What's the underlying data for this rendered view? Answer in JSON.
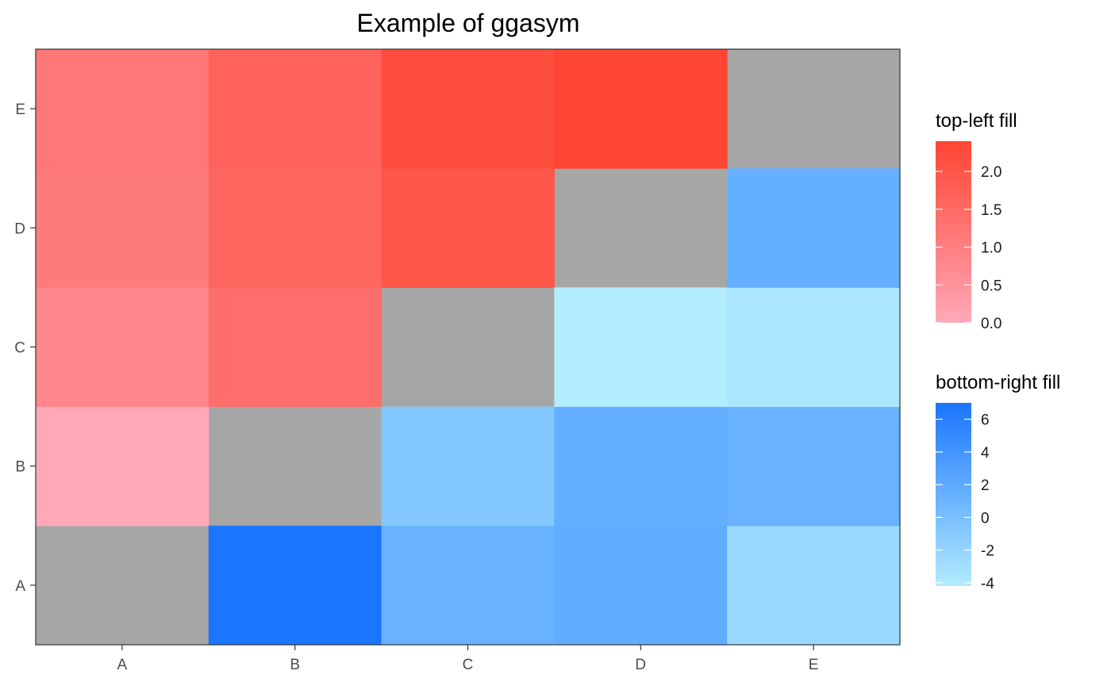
{
  "chart_data": {
    "type": "heatmap",
    "title": "Example of ggasym",
    "xlabel": "",
    "ylabel": "",
    "x_categories": [
      "A",
      "B",
      "C",
      "D",
      "E"
    ],
    "y_categories": [
      "A",
      "B",
      "C",
      "D",
      "E"
    ],
    "diagonal_color": "#a6a6a6",
    "grid": false,
    "legend_position": "right",
    "cells_top_left": [
      {
        "x": "A",
        "y": "B",
        "value": 0.0
      },
      {
        "x": "A",
        "y": "C",
        "value": 0.8
      },
      {
        "x": "A",
        "y": "D",
        "value": 1.1
      },
      {
        "x": "A",
        "y": "E",
        "value": 1.2
      },
      {
        "x": "B",
        "y": "C",
        "value": 1.4
      },
      {
        "x": "B",
        "y": "D",
        "value": 1.6
      },
      {
        "x": "B",
        "y": "E",
        "value": 1.7
      },
      {
        "x": "C",
        "y": "D",
        "value": 2.0
      },
      {
        "x": "C",
        "y": "E",
        "value": 2.2
      },
      {
        "x": "D",
        "y": "E",
        "value": 2.4
      }
    ],
    "cells_bottom_right": [
      {
        "x": "B",
        "y": "A",
        "value": 7.0
      },
      {
        "x": "C",
        "y": "A",
        "value": 1.3
      },
      {
        "x": "D",
        "y": "A",
        "value": 1.8
      },
      {
        "x": "E",
        "y": "A",
        "value": -2.3
      },
      {
        "x": "C",
        "y": "B",
        "value": -0.7
      },
      {
        "x": "D",
        "y": "B",
        "value": 1.6
      },
      {
        "x": "E",
        "y": "B",
        "value": 1.3
      },
      {
        "x": "D",
        "y": "C",
        "value": -4.2
      },
      {
        "x": "E",
        "y": "C",
        "value": -3.6
      },
      {
        "x": "E",
        "y": "D",
        "value": 1.5
      }
    ],
    "legends": [
      {
        "title": "top-left fill",
        "min": 0.0,
        "max": 2.4,
        "low_color": "#ffa8b8",
        "high_color": "#ff4533",
        "breaks": [
          0.0,
          0.5,
          1.0,
          1.5,
          2.0
        ],
        "break_labels": [
          "0.0",
          "0.5",
          "1.0",
          "1.5",
          "2.0"
        ]
      },
      {
        "title": "bottom-right fill",
        "min": -4.2,
        "max": 7.0,
        "low_color": "#b3ecff",
        "high_color": "#1a75ff",
        "breaks": [
          -4,
          -2,
          0,
          2,
          4,
          6
        ],
        "break_labels": [
          "-4",
          "-2",
          "0",
          "2",
          "4",
          "6"
        ]
      }
    ]
  }
}
